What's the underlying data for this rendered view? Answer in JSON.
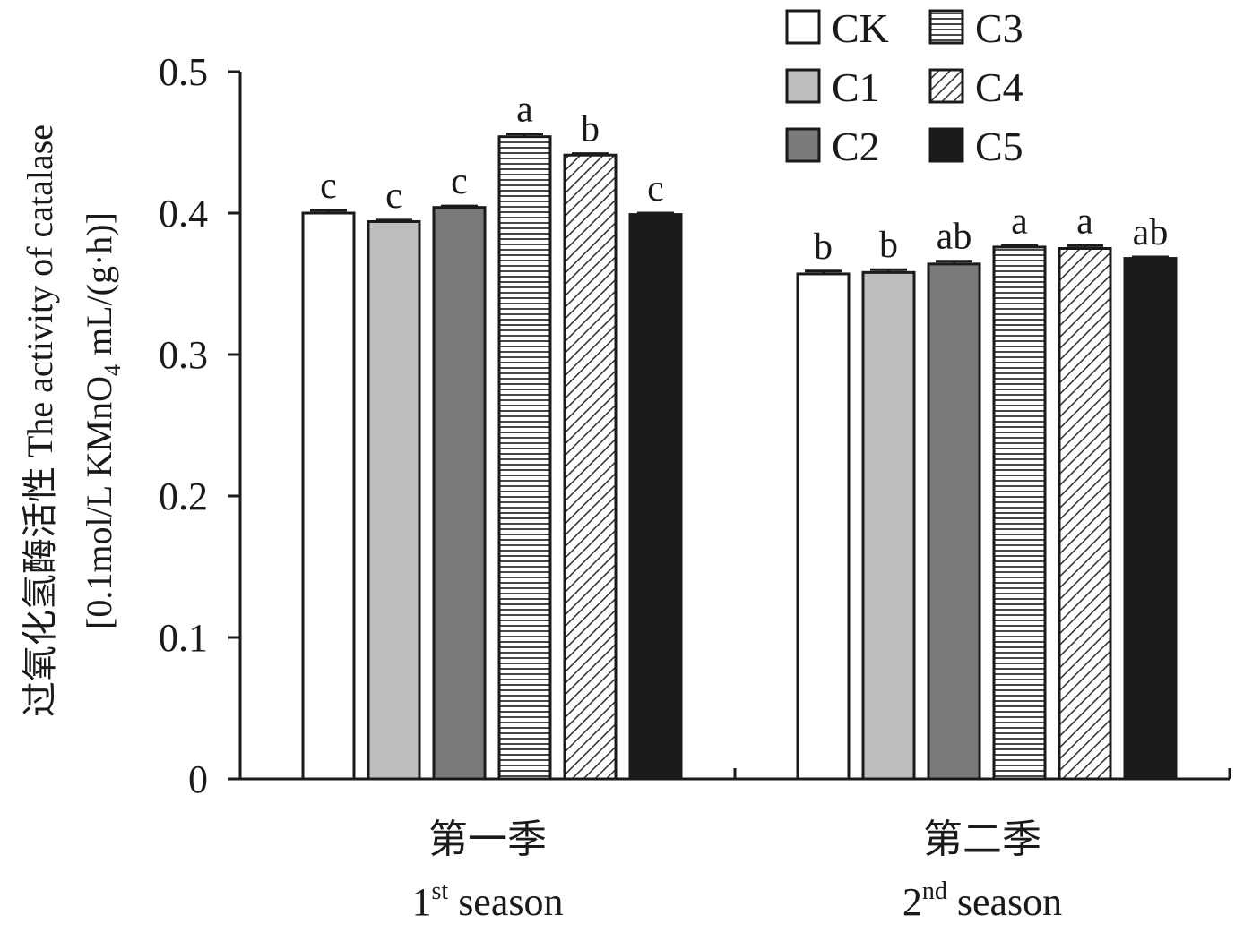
{
  "chart_data": {
    "type": "bar",
    "ylabel_line1": "过氧化氢酶活性 The activity of catalase",
    "ylabel_line2_pre": "[0.1mol/L KMnO",
    "ylabel_line2_sub": "4",
    "ylabel_line2_post": " mL/(g·h)]",
    "ylim": [
      0,
      0.5
    ],
    "yticks": [
      "0",
      "0.1",
      "0.2",
      "0.3",
      "0.4",
      "0.5"
    ],
    "ytick_values": [
      0,
      0.1,
      0.2,
      0.3,
      0.4,
      0.5
    ],
    "categories": [
      {
        "cn": "第一季",
        "num": "1",
        "sup": "st",
        "en": " season"
      },
      {
        "cn": "第二季",
        "num": "2",
        "sup": "nd",
        "en": " season"
      }
    ],
    "series": [
      {
        "name": "CK",
        "pattern": "white",
        "values": [
          0.4,
          0.357
        ],
        "errors": [
          0.002,
          0.002
        ],
        "labels": [
          "c",
          "b"
        ]
      },
      {
        "name": "C1",
        "pattern": "lightgray",
        "values": [
          0.394,
          0.358
        ],
        "errors": [
          0.001,
          0.002
        ],
        "labels": [
          "c",
          "b"
        ]
      },
      {
        "name": "C2",
        "pattern": "darkgray",
        "values": [
          0.404,
          0.364
        ],
        "errors": [
          0.001,
          0.002
        ],
        "labels": [
          "c",
          "ab"
        ]
      },
      {
        "name": "C3",
        "pattern": "hlines",
        "values": [
          0.454,
          0.376
        ],
        "errors": [
          0.002,
          0.001
        ],
        "labels": [
          "a",
          "a"
        ]
      },
      {
        "name": "C4",
        "pattern": "diagonal",
        "values": [
          0.441,
          0.375
        ],
        "errors": [
          0.001,
          0.002
        ],
        "labels": [
          "b",
          "a"
        ]
      },
      {
        "name": "C5",
        "pattern": "black",
        "values": [
          0.399,
          0.368
        ],
        "errors": [
          0.001,
          0.001
        ],
        "labels": [
          "c",
          "ab"
        ]
      }
    ],
    "legend_position": "top-right",
    "grid": false,
    "colors": {
      "axis": "#1a1a1a",
      "lightgray": "#bdbdbd",
      "darkgray": "#7a7a7a",
      "black": "#1a1a1a",
      "white": "#ffffff"
    }
  }
}
